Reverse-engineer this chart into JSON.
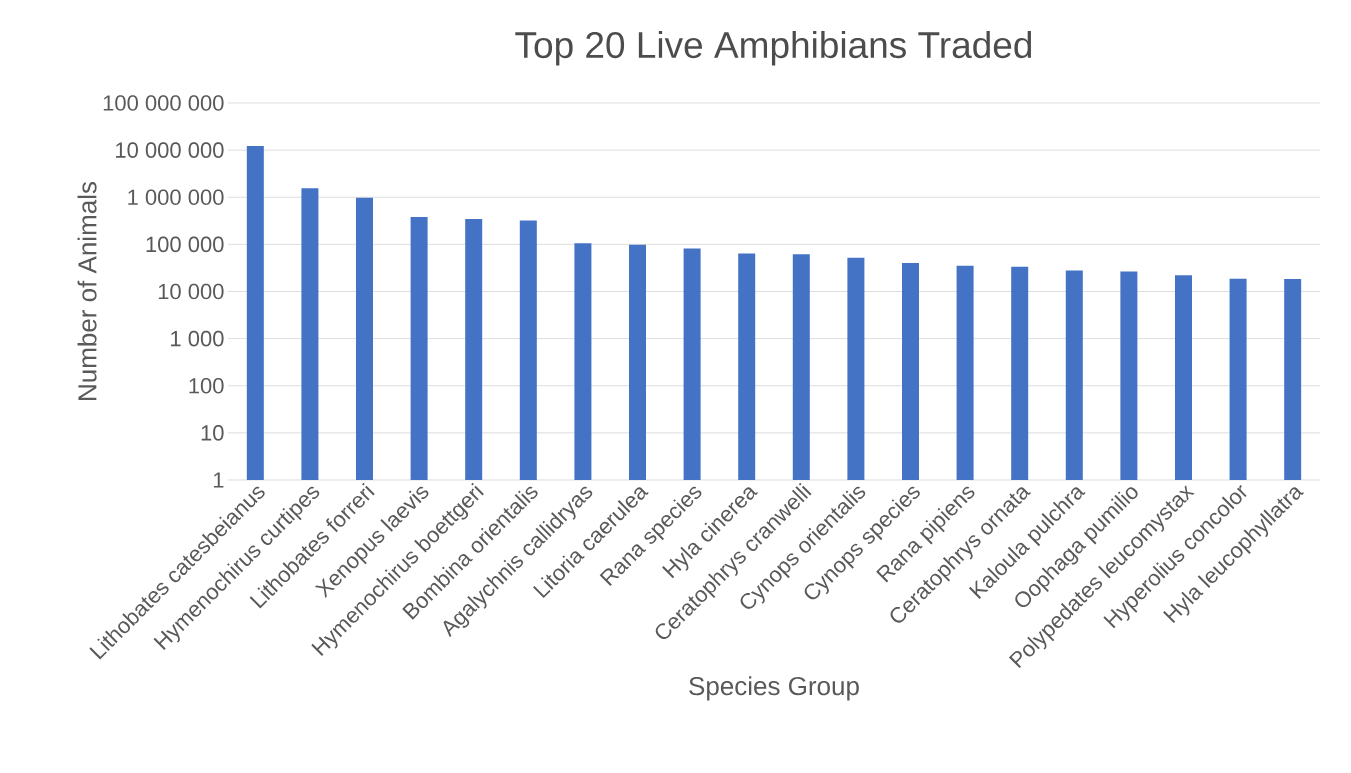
{
  "chart_data": {
    "type": "bar",
    "title": "Top 20 Live Amphibians Traded",
    "xlabel": "Species Group",
    "ylabel": "Number of Animals",
    "categories": [
      "Lithobates catesbeianus",
      "Hymenochirus curtipes",
      "Lithobates forreri",
      "Xenopus laevis",
      "Hymenochirus boettgeri",
      "Bombina orientalis",
      "Agalychnis callidryas",
      "Litoria caerulea",
      "Rana species",
      "Hyla cinerea",
      "Ceratophrys cranwelli",
      "Cynops orientalis",
      "Cynops species",
      "Rana pipiens",
      "Ceratophrys ornata",
      "Kaloula pulchra",
      "Oophaga pumilio",
      "Polypedates leucomystax",
      "Hyperolius concolor",
      "Hyla leucophyllatra"
    ],
    "values": [
      12300000,
      1550000,
      970000,
      380000,
      345000,
      320000,
      105000,
      98000,
      82000,
      64000,
      62000,
      52000,
      40000,
      35000,
      33500,
      28000,
      26500,
      22000,
      18600,
      18300
    ],
    "color": "#4472c4",
    "log": "y",
    "grid": "y",
    "ylim": [
      1,
      100000000
    ],
    "yticks": [
      1,
      10,
      100,
      {
        "value": 1000,
        "label": "1 000"
      },
      {
        "value": 10000,
        "label": "10 000"
      },
      {
        "value": 100000,
        "label": "100 000"
      },
      {
        "value": 1000000,
        "label": "1 000 000"
      },
      {
        "value": 10000000,
        "label": "10 000 000"
      },
      {
        "value": 100000000,
        "label": "100 000 000"
      }
    ]
  }
}
